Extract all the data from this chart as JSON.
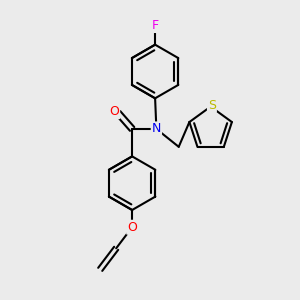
{
  "background_color": "#ebebeb",
  "atom_colors": {
    "F": "#ee00ee",
    "O": "#ff0000",
    "N": "#0000ee",
    "S": "#bbbb00",
    "C": "#000000"
  },
  "bond_color": "#000000",
  "bond_width": 1.5,
  "font_size_atom": 8.5,
  "xlim": [
    -1.5,
    2.0
  ],
  "ylim": [
    -2.3,
    2.4
  ]
}
